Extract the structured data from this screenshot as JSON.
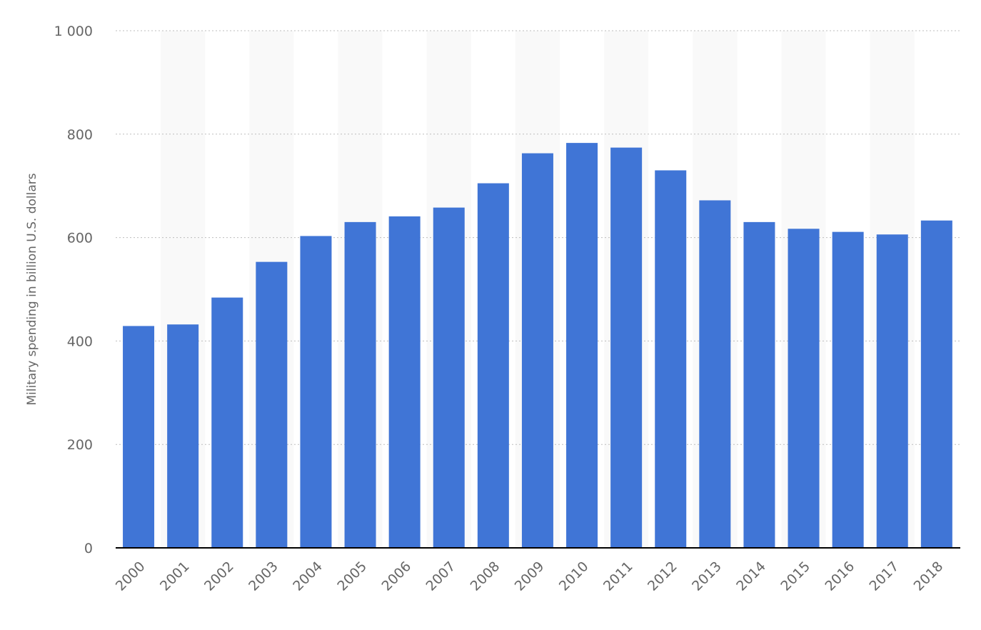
{
  "chart_data": {
    "type": "bar",
    "title": "",
    "xlabel": "",
    "ylabel": "Military spending in billion U.S. dollars",
    "categories": [
      "2000",
      "2001",
      "2002",
      "2003",
      "2004",
      "2005",
      "2006",
      "2007",
      "2008",
      "2009",
      "2010",
      "2011",
      "2012",
      "2013",
      "2014",
      "2015",
      "2016",
      "2017",
      "2018"
    ],
    "values": [
      429,
      432,
      484,
      553,
      603,
      630,
      641,
      658,
      705,
      763,
      783,
      774,
      730,
      672,
      630,
      617,
      611,
      606,
      633
    ],
    "ylim": [
      0,
      1000
    ],
    "yticks": [
      0,
      200,
      400,
      600,
      800,
      1000
    ],
    "ytick_labels": [
      "0",
      "200",
      "400",
      "600",
      "800",
      "1 000"
    ],
    "grid": true,
    "legend": "none",
    "colors": {
      "bar": "#4075d6",
      "grid": "#bdbdbd",
      "axis": "#000000",
      "text": "#666666",
      "band": "#f9f9f9"
    }
  }
}
